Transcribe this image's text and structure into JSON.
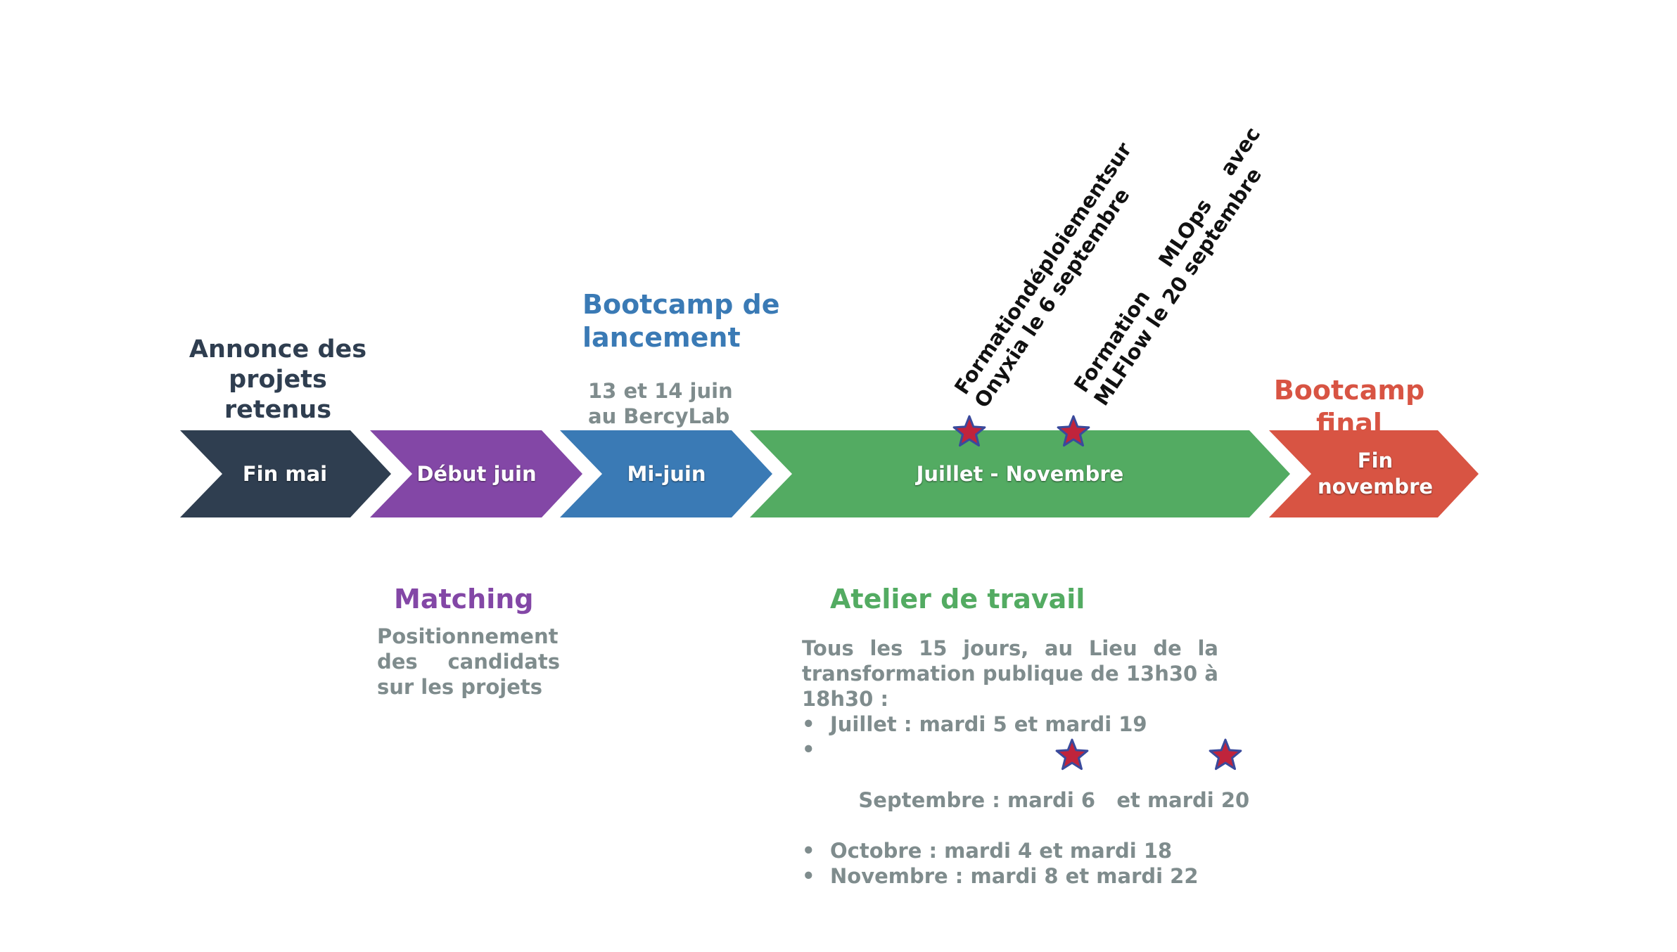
{
  "timeline": {
    "steps": [
      {
        "label": "Fin mai",
        "color": "#2f3e50"
      },
      {
        "label": "Début juin",
        "color": "#8347a6"
      },
      {
        "label": "Mi-juin",
        "color": "#3a7ab5"
      },
      {
        "label": "Juillet - Novembre",
        "color": "#53ab62"
      },
      {
        "label": "Fin novembre",
        "color": "#d85443"
      }
    ]
  },
  "annonce": {
    "title": "Annonce des projets retenus"
  },
  "bootcamp_lancement": {
    "title": "Bootcamp de lancement",
    "date_line1": "13 et 14 juin",
    "date_line2": "au BercyLab"
  },
  "bootcamp_final": {
    "title": "Bootcamp final"
  },
  "matching": {
    "title": "Matching",
    "text": "Positionnement des candidats sur les projets"
  },
  "formations": [
    {
      "line1_words": [
        "Formation",
        "déploiement",
        "sur"
      ],
      "line2": "Onyxia le 6 septembre"
    },
    {
      "line1_words": [
        "Formation",
        "MLOps",
        "avec"
      ],
      "line2": "MLFlow le 20 septembre"
    }
  ],
  "atelier": {
    "title": "Atelier de travail",
    "intro": "Tous les 15 jours, au Lieu de la transformation publique de 13h30 à 18h30 :",
    "bullet": "•",
    "items": [
      "Juillet : mardi 5 et mardi 19",
      "Septembre : mardi 6   et mardi 20",
      "Octobre : mardi 4 et mardi 18",
      "Novembre : mardi 8 et mardi 22"
    ]
  },
  "star": {
    "fill": "#c0243c",
    "outline": "#3a4a9c",
    "icon": "star-icon"
  }
}
